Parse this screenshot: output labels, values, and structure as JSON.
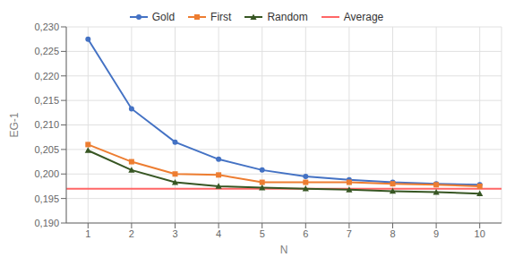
{
  "chart_data": {
    "type": "line",
    "xlabel": "N",
    "ylabel": "EG-1",
    "x": [
      1,
      2,
      3,
      4,
      5,
      6,
      7,
      8,
      9,
      10
    ],
    "xlim": [
      0.5,
      10.5
    ],
    "xticks": [
      1,
      2,
      3,
      4,
      5,
      6,
      7,
      8,
      9,
      10
    ],
    "ylim": [
      0.19,
      0.23
    ],
    "yticks": [
      {
        "value": 0.19,
        "label": "0,190"
      },
      {
        "value": 0.195,
        "label": "0,195"
      },
      {
        "value": 0.2,
        "label": "0,200"
      },
      {
        "value": 0.205,
        "label": "0,205"
      },
      {
        "value": 0.21,
        "label": "0,210"
      },
      {
        "value": 0.215,
        "label": "0,215"
      },
      {
        "value": 0.22,
        "label": "0,220"
      },
      {
        "value": 0.225,
        "label": "0,225"
      },
      {
        "value": 0.23,
        "label": "0,230"
      }
    ],
    "grid": true,
    "legend": "top",
    "series": [
      {
        "name": "Gold",
        "color": "#4472C4",
        "marker": "circle",
        "line_style": "solid",
        "values": [
          0.2275,
          0.2133,
          0.2065,
          0.203,
          0.2008,
          0.1995,
          0.1988,
          0.1983,
          0.198,
          0.1978
        ]
      },
      {
        "name": "First",
        "color": "#ED7D31",
        "marker": "square",
        "line_style": "solid",
        "values": [
          0.206,
          0.2025,
          0.2,
          0.1998,
          0.1983,
          0.1983,
          0.1983,
          0.198,
          0.1978,
          0.1975
        ]
      },
      {
        "name": "Random",
        "color": "#375623",
        "marker": "triangle",
        "line_style": "solid",
        "values": [
          0.2048,
          0.2008,
          0.1983,
          0.1975,
          0.1972,
          0.197,
          0.1968,
          0.1965,
          0.1963,
          0.196
        ]
      },
      {
        "name": "Average",
        "color": "#FF6666",
        "type": "hline",
        "line_style": "solid",
        "value": 0.197
      }
    ]
  }
}
